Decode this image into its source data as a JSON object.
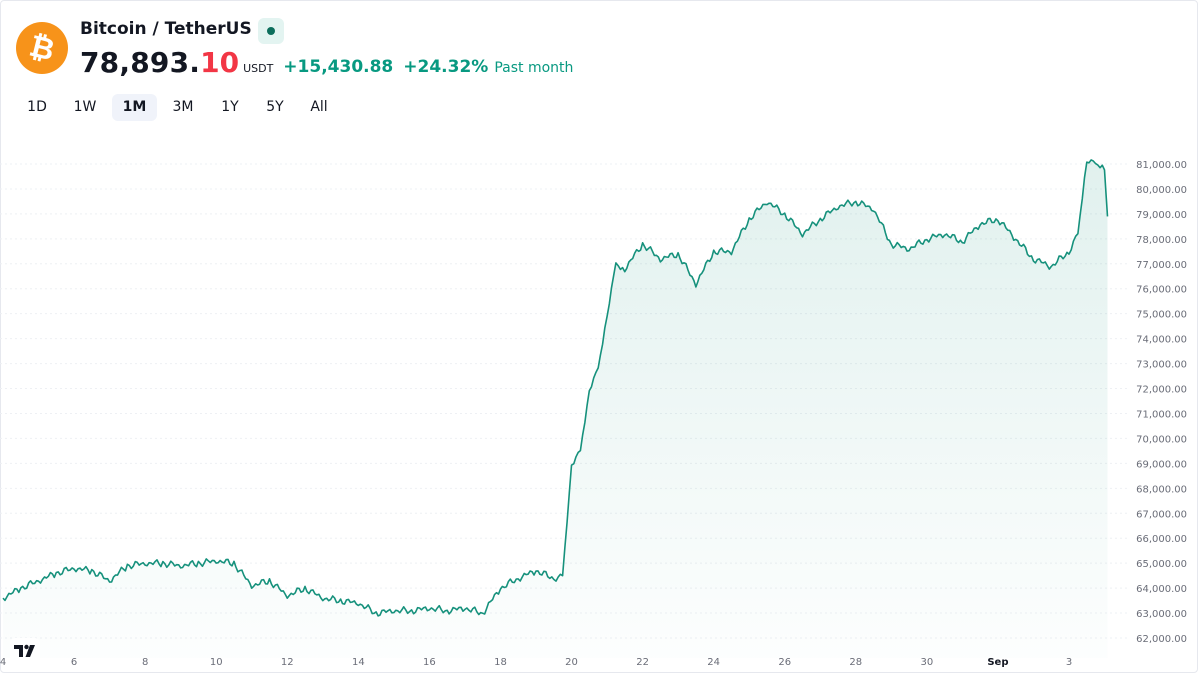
{
  "header": {
    "symbol": "Bitcoin / TetherUS",
    "price_main": "78,893.",
    "price_decimals": "10",
    "currency": "USDT",
    "change_abs": "+15,430.88",
    "change_pct": "+24.32%",
    "period_label": "Past month",
    "logo_icon": "bitcoin-logo-icon",
    "colors": {
      "brand": "#f7931a",
      "up": "#089981",
      "accent_decimal": "#f23645",
      "live": "#0c6e5c"
    }
  },
  "tabs": [
    {
      "label": "1D",
      "active": false
    },
    {
      "label": "1W",
      "active": false
    },
    {
      "label": "1M",
      "active": true
    },
    {
      "label": "3M",
      "active": false
    },
    {
      "label": "1Y",
      "active": false
    },
    {
      "label": "5Y",
      "active": false
    },
    {
      "label": "All",
      "active": false
    }
  ],
  "chart_data": {
    "type": "area",
    "xlabel": "",
    "ylabel": "",
    "ylim": [
      62000,
      81800
    ],
    "xlim": [
      "2025-08-04",
      "2025-09-04T02:00"
    ],
    "y_ticks": [
      62000,
      63000,
      64000,
      65000,
      66000,
      67000,
      68000,
      69000,
      70000,
      71000,
      72000,
      73000,
      74000,
      75000,
      76000,
      77000,
      78000,
      79000,
      80000,
      81000
    ],
    "y_tick_labels": [
      "62,000.00",
      "63,000.00",
      "64,000.00",
      "65,000.00",
      "66,000.00",
      "67,000.00",
      "68,000.00",
      "69,000.00",
      "70,000.00",
      "71,000.00",
      "72,000.00",
      "73,000.00",
      "74,000.00",
      "75,000.00",
      "76,000.00",
      "77,000.00",
      "78,000.00",
      "79,000.00",
      "80,000.00",
      "81,000.00"
    ],
    "x_ticks": [
      {
        "x": "2025-08-04",
        "label": "4"
      },
      {
        "x": "2025-08-06",
        "label": "6"
      },
      {
        "x": "2025-08-08",
        "label": "8"
      },
      {
        "x": "2025-08-10",
        "label": "10"
      },
      {
        "x": "2025-08-12",
        "label": "12"
      },
      {
        "x": "2025-08-14",
        "label": "14"
      },
      {
        "x": "2025-08-16",
        "label": "16"
      },
      {
        "x": "2025-08-18",
        "label": "18"
      },
      {
        "x": "2025-08-20",
        "label": "20"
      },
      {
        "x": "2025-08-22",
        "label": "22"
      },
      {
        "x": "2025-08-24",
        "label": "24"
      },
      {
        "x": "2025-08-26",
        "label": "26"
      },
      {
        "x": "2025-08-28",
        "label": "28"
      },
      {
        "x": "2025-08-30",
        "label": "30"
      },
      {
        "x": "2025-09-01",
        "label": "Sep"
      },
      {
        "x": "2025-09-03",
        "label": "3"
      }
    ],
    "grid": true,
    "line_color": "#16917c",
    "series": [
      {
        "x": [
          "2025-08-04T00:00",
          "2025-08-04T12:00",
          "2025-08-05T00:00",
          "2025-08-05T12:00",
          "2025-08-06T00:00",
          "2025-08-06T12:00",
          "2025-08-07T00:00",
          "2025-08-07T12:00",
          "2025-08-08T00:00",
          "2025-08-08T12:00",
          "2025-08-09T00:00",
          "2025-08-09T12:00",
          "2025-08-10T00:00",
          "2025-08-10T12:00",
          "2025-08-11T00:00",
          "2025-08-11T12:00",
          "2025-08-12T00:00",
          "2025-08-12T12:00",
          "2025-08-13T00:00",
          "2025-08-13T12:00",
          "2025-08-14T00:00",
          "2025-08-14T12:00",
          "2025-08-15T00:00",
          "2025-08-15T12:00",
          "2025-08-16T00:00",
          "2025-08-16T12:00",
          "2025-08-17T00:00",
          "2025-08-17T12:00",
          "2025-08-18T00:00",
          "2025-08-18T12:00",
          "2025-08-19T00:00",
          "2025-08-19T12:00",
          "2025-08-19T18:00",
          "2025-08-20T00:00",
          "2025-08-20T06:00",
          "2025-08-20T12:00",
          "2025-08-20T18:00",
          "2025-08-21T00:00",
          "2025-08-21T06:00",
          "2025-08-21T12:00",
          "2025-08-22T00:00",
          "2025-08-22T12:00",
          "2025-08-23T00:00",
          "2025-08-23T12:00",
          "2025-08-24T00:00",
          "2025-08-24T12:00",
          "2025-08-25T00:00",
          "2025-08-25T12:00",
          "2025-08-26T00:00",
          "2025-08-26T12:00",
          "2025-08-27T00:00",
          "2025-08-27T12:00",
          "2025-08-28T00:00",
          "2025-08-28T12:00",
          "2025-08-29T00:00",
          "2025-08-29T12:00",
          "2025-08-30T00:00",
          "2025-08-30T12:00",
          "2025-08-31T00:00",
          "2025-08-31T12:00",
          "2025-09-01T00:00",
          "2025-09-01T12:00",
          "2025-09-02T00:00",
          "2025-09-02T12:00",
          "2025-09-03T00:00",
          "2025-09-03T06:00",
          "2025-09-03T12:00",
          "2025-09-03T18:00",
          "2025-09-04T00:00",
          "2025-09-04T02:00"
        ],
        "y": [
          63600,
          64000,
          64300,
          64600,
          64800,
          64700,
          64300,
          64900,
          65000,
          65000,
          64900,
          65000,
          65100,
          65000,
          64100,
          64300,
          63700,
          64000,
          63600,
          63500,
          63400,
          63000,
          63100,
          63100,
          63200,
          63100,
          63200,
          63000,
          64000,
          64400,
          64700,
          64400,
          64500,
          69000,
          69500,
          72000,
          72800,
          75000,
          77000,
          76800,
          77800,
          77200,
          77400,
          76200,
          77500,
          77500,
          78800,
          79500,
          79000,
          78200,
          78800,
          79300,
          79500,
          79200,
          77800,
          77600,
          78000,
          78200,
          77900,
          78600,
          78800,
          78000,
          77200,
          76900,
          77500,
          78200,
          81200,
          81000,
          80900,
          78900
        ]
      }
    ],
    "last_value": 78893.1
  }
}
